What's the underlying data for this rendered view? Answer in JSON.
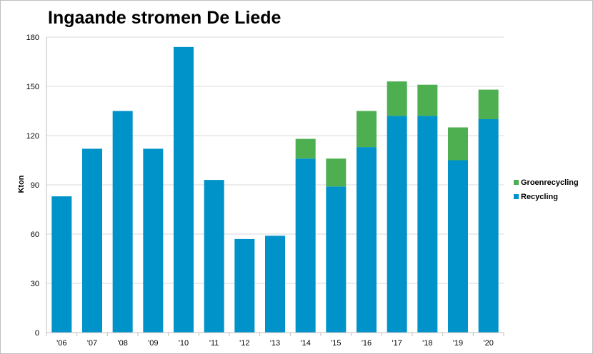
{
  "chart_data": {
    "type": "bar",
    "stacked": true,
    "title": "Ingaande stromen De Liede",
    "xlabel": "",
    "ylabel": "Kton",
    "ylim": [
      0,
      180
    ],
    "yticks": [
      0,
      30,
      60,
      90,
      120,
      150,
      180
    ],
    "grid": true,
    "legend_position": "right",
    "categories": [
      "'06",
      "'07",
      "'08",
      "'09",
      "'10",
      "'11",
      "'12",
      "'13",
      "'14",
      "'15",
      "'16",
      "'17",
      "'18",
      "'19",
      "'20"
    ],
    "series": [
      {
        "name": "Recycling",
        "color": "#0093c9",
        "values": [
          83,
          112,
          135,
          112,
          174,
          93,
          57,
          59,
          106,
          89,
          113,
          132,
          132,
          105,
          130
        ]
      },
      {
        "name": "Groenrecycling",
        "color": "#4daf4f",
        "values": [
          0,
          0,
          0,
          0,
          0,
          0,
          0,
          0,
          12,
          17,
          22,
          21,
          19,
          20,
          18
        ]
      }
    ]
  }
}
